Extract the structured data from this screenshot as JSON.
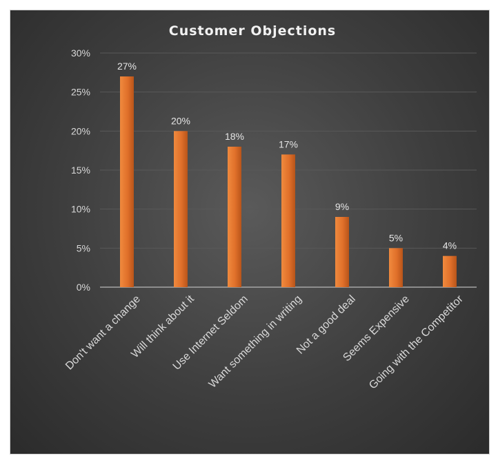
{
  "chart_data": {
    "type": "bar",
    "title": "Customer Objections",
    "categories": [
      "Don't want a change",
      "Will think about it",
      "Use Internet Seldom",
      "Want something in writing",
      "Not a good deal",
      "Seems Expensive",
      "Going with the Competitor"
    ],
    "values": [
      27,
      20,
      18,
      17,
      9,
      5,
      4
    ],
    "data_labels": [
      "27%",
      "20%",
      "18%",
      "17%",
      "9%",
      "5%",
      "4%"
    ],
    "yticks": [
      0,
      5,
      10,
      15,
      20,
      25,
      30
    ],
    "ytick_labels": [
      "0%",
      "5%",
      "10%",
      "15%",
      "20%",
      "25%",
      "30%"
    ],
    "ylim": [
      0,
      30
    ],
    "xlabel": "",
    "ylabel": "",
    "grid": true,
    "legend": "none",
    "colors": {
      "bar": "#e0702a",
      "bar_dark": "#b8541a",
      "background": "#3e3e3e",
      "grid": "#595959",
      "axis": "#a6a6a6",
      "text": "#d9d9d9"
    }
  }
}
